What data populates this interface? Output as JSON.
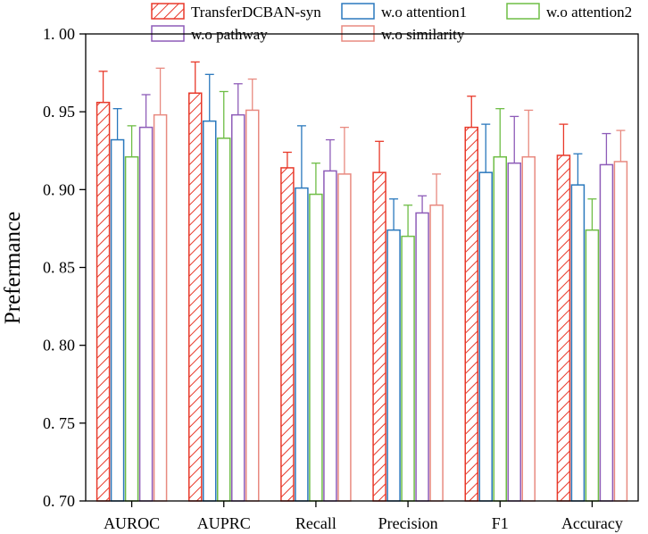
{
  "chart_data": {
    "type": "bar",
    "title": "",
    "xlabel": "",
    "ylabel": "Prefermance",
    "ylim": [
      0.7,
      1.0
    ],
    "yticks": [
      0.7,
      0.75,
      0.8,
      0.85,
      0.9,
      0.95,
      1.0
    ],
    "ytick_labels": [
      "0. 70",
      "0. 75",
      "0. 80",
      "0. 85",
      "0. 90",
      "0. 95",
      "1. 00"
    ],
    "categories": [
      "AUROC",
      "AUPRC",
      "Recall",
      "Precision",
      "F1",
      "Accuracy"
    ],
    "legend_position": "top",
    "series": [
      {
        "name": "TransferDCBAN-syn",
        "color": "#e8392a",
        "hatched": true,
        "values": [
          0.956,
          0.962,
          0.914,
          0.911,
          0.94,
          0.922
        ],
        "errors": [
          0.02,
          0.02,
          0.01,
          0.02,
          0.02,
          0.02
        ]
      },
      {
        "name": "w.o attention1",
        "color": "#2a78bd",
        "hatched": false,
        "values": [
          0.932,
          0.944,
          0.901,
          0.874,
          0.911,
          0.903
        ],
        "errors": [
          0.02,
          0.03,
          0.04,
          0.02,
          0.031,
          0.02
        ]
      },
      {
        "name": "w.o attention2",
        "color": "#6ebd45",
        "hatched": false,
        "values": [
          0.921,
          0.933,
          0.897,
          0.87,
          0.921,
          0.874
        ],
        "errors": [
          0.02,
          0.03,
          0.02,
          0.02,
          0.031,
          0.02
        ]
      },
      {
        "name": "w.o pathway",
        "color": "#8e5cb8",
        "hatched": false,
        "values": [
          0.94,
          0.948,
          0.912,
          0.885,
          0.917,
          0.916
        ],
        "errors": [
          0.021,
          0.02,
          0.02,
          0.011,
          0.03,
          0.02
        ]
      },
      {
        "name": "w.o similarity",
        "color": "#e88a80",
        "hatched": false,
        "values": [
          0.948,
          0.951,
          0.91,
          0.89,
          0.921,
          0.918
        ],
        "errors": [
          0.03,
          0.02,
          0.03,
          0.02,
          0.03,
          0.02
        ]
      }
    ]
  }
}
